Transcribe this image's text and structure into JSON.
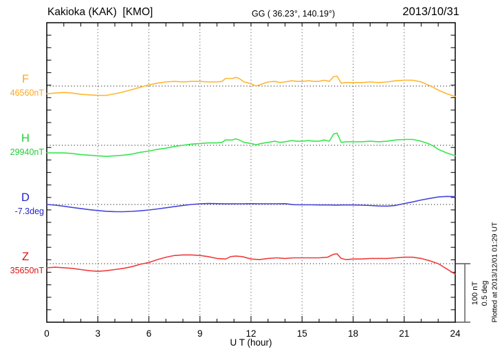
{
  "header": {
    "title": "Kakioka (KAK)  [KMO]",
    "coords": "GG ( 36.23°, 140.19°)",
    "date": "2013/10/31"
  },
  "axis": {
    "x_label": "U T (hour)",
    "x_ticks": [
      "0",
      "3",
      "6",
      "9",
      "12",
      "15",
      "18",
      "21",
      "24"
    ]
  },
  "scale_bar": {
    "line1": "100 nT",
    "line2": "0.5 deg"
  },
  "footer_note": "Plotted at 2013/12/01 01:29 UT",
  "chart_data": {
    "type": "line",
    "title": "Kakioka (KAK) [KMO] magnetogram 2013/10/31",
    "xlabel": "U T (hour)",
    "x_range": [
      0,
      24
    ],
    "x_tick_step_major": 3,
    "x_tick_step_minor": 1,
    "grid": "dotted vertical lines every 3 h; dotted horizontal baseline per channel",
    "scale": {
      "nT_per_division": 100,
      "deg_per_division": 0.5
    },
    "legend_position": "left margin, one colored label per channel",
    "series": [
      {
        "name": "F",
        "unit": "nT",
        "baseline": 46560,
        "baseline_label": "46560nT",
        "color": "#FFB52E",
        "label_color": "#FFA81E",
        "points": [
          [
            0,
            -13
          ],
          [
            0.5,
            -12
          ],
          [
            1,
            -11
          ],
          [
            1.5,
            -12
          ],
          [
            2,
            -14
          ],
          [
            2.5,
            -15
          ],
          [
            3,
            -16
          ],
          [
            3.5,
            -16
          ],
          [
            4,
            -13
          ],
          [
            4.5,
            -10
          ],
          [
            5,
            -6
          ],
          [
            5.5,
            -2
          ],
          [
            6,
            2
          ],
          [
            6.5,
            5
          ],
          [
            7,
            7
          ],
          [
            7.5,
            8
          ],
          [
            8,
            7
          ],
          [
            8.5,
            8
          ],
          [
            9,
            8
          ],
          [
            9.5,
            7
          ],
          [
            10,
            7
          ],
          [
            10.3,
            8
          ],
          [
            10.5,
            13
          ],
          [
            10.9,
            13
          ],
          [
            11.1,
            15
          ],
          [
            11.3,
            13
          ],
          [
            11.6,
            7
          ],
          [
            12,
            4
          ],
          [
            12.3,
            0
          ],
          [
            12.6,
            3
          ],
          [
            13,
            7
          ],
          [
            13.4,
            8
          ],
          [
            13.7,
            6
          ],
          [
            14,
            7
          ],
          [
            14.4,
            9
          ],
          [
            14.7,
            8
          ],
          [
            15,
            8
          ],
          [
            15.4,
            9
          ],
          [
            15.7,
            8
          ],
          [
            16,
            8
          ],
          [
            16.3,
            10
          ],
          [
            16.6,
            8
          ],
          [
            16.85,
            16
          ],
          [
            17.05,
            17
          ],
          [
            17.3,
            5
          ],
          [
            17.6,
            6
          ],
          [
            18,
            6
          ],
          [
            18.5,
            6
          ],
          [
            19,
            7
          ],
          [
            19.5,
            6
          ],
          [
            20,
            7
          ],
          [
            20.5,
            9
          ],
          [
            21,
            10
          ],
          [
            21.5,
            10
          ],
          [
            22,
            7
          ],
          [
            22.4,
            2
          ],
          [
            22.7,
            -2
          ],
          [
            23,
            -7
          ],
          [
            23.5,
            -13
          ],
          [
            24,
            -18
          ]
        ]
      },
      {
        "name": "H",
        "unit": "nT",
        "baseline": 29940,
        "baseline_label": "29940nT",
        "color": "#35E64B",
        "label_color": "#21CC38",
        "points": [
          [
            0,
            -13
          ],
          [
            0.5,
            -13
          ],
          [
            1,
            -13
          ],
          [
            1.5,
            -14
          ],
          [
            2,
            -16
          ],
          [
            2.5,
            -17
          ],
          [
            3,
            -18
          ],
          [
            3.5,
            -19
          ],
          [
            4,
            -18
          ],
          [
            4.5,
            -17
          ],
          [
            5,
            -15
          ],
          [
            5.5,
            -12
          ],
          [
            6,
            -10
          ],
          [
            6.5,
            -7
          ],
          [
            7,
            -5
          ],
          [
            7.5,
            -2
          ],
          [
            8,
            0
          ],
          [
            8.5,
            2
          ],
          [
            9,
            3
          ],
          [
            9.5,
            4
          ],
          [
            10,
            4
          ],
          [
            10.3,
            5
          ],
          [
            10.5,
            9
          ],
          [
            10.9,
            9
          ],
          [
            11.1,
            11
          ],
          [
            11.3,
            9
          ],
          [
            11.6,
            5
          ],
          [
            12,
            3
          ],
          [
            12.3,
            1
          ],
          [
            12.6,
            3
          ],
          [
            13,
            5
          ],
          [
            13.4,
            7
          ],
          [
            13.7,
            5
          ],
          [
            14,
            6
          ],
          [
            14.4,
            8
          ],
          [
            14.7,
            7
          ],
          [
            15,
            7
          ],
          [
            15.4,
            8
          ],
          [
            15.7,
            7
          ],
          [
            16,
            7
          ],
          [
            16.3,
            9
          ],
          [
            16.6,
            7
          ],
          [
            16.85,
            19
          ],
          [
            17.05,
            21
          ],
          [
            17.3,
            5
          ],
          [
            17.6,
            6
          ],
          [
            18,
            6
          ],
          [
            18.5,
            6
          ],
          [
            19,
            7
          ],
          [
            19.5,
            6
          ],
          [
            20,
            7
          ],
          [
            20.5,
            9
          ],
          [
            21,
            10
          ],
          [
            21.5,
            10
          ],
          [
            22,
            7
          ],
          [
            22.4,
            3
          ],
          [
            22.7,
            -1
          ],
          [
            23,
            -7
          ],
          [
            23.5,
            -13
          ],
          [
            24,
            -18
          ]
        ]
      },
      {
        "name": "D",
        "unit": "deg",
        "baseline": -7.3,
        "baseline_label": "-7.3deg",
        "color": "#4545DD",
        "label_color": "#2323CC",
        "points": [
          [
            0,
            0.0
          ],
          [
            0.5,
            -0.006
          ],
          [
            1,
            -0.015
          ],
          [
            1.5,
            -0.025
          ],
          [
            2,
            -0.035
          ],
          [
            2.5,
            -0.045
          ],
          [
            3,
            -0.052
          ],
          [
            3.5,
            -0.058
          ],
          [
            4,
            -0.061
          ],
          [
            4.5,
            -0.062
          ],
          [
            5,
            -0.059
          ],
          [
            5.5,
            -0.054
          ],
          [
            6,
            -0.047
          ],
          [
            6.5,
            -0.038
          ],
          [
            7,
            -0.028
          ],
          [
            7.5,
            -0.018
          ],
          [
            8,
            -0.008
          ],
          [
            8.5,
            0.0
          ],
          [
            9,
            0.005
          ],
          [
            9.5,
            0.008
          ],
          [
            10,
            0.007
          ],
          [
            10.5,
            0.005
          ],
          [
            11,
            0.005
          ],
          [
            11.5,
            0.006
          ],
          [
            12,
            0.007
          ],
          [
            12.5,
            0.006
          ],
          [
            13,
            0.006
          ],
          [
            13.5,
            0.006
          ],
          [
            14,
            0.007
          ],
          [
            14.5,
            -0.002
          ],
          [
            15,
            -0.003
          ],
          [
            15.5,
            -0.003
          ],
          [
            16,
            -0.004
          ],
          [
            16.5,
            -0.004
          ],
          [
            17,
            -0.005
          ],
          [
            17.5,
            -0.004
          ],
          [
            18,
            -0.004
          ],
          [
            18.5,
            -0.006
          ],
          [
            19,
            -0.009
          ],
          [
            19.5,
            -0.013
          ],
          [
            20,
            -0.014
          ],
          [
            20.5,
            -0.008
          ],
          [
            21,
            0.008
          ],
          [
            21.5,
            0.022
          ],
          [
            22,
            0.038
          ],
          [
            22.5,
            0.052
          ],
          [
            23,
            0.064
          ],
          [
            23.5,
            0.069
          ],
          [
            24,
            0.067
          ]
        ]
      },
      {
        "name": "Z",
        "unit": "nT",
        "baseline": 35650,
        "baseline_label": "35650nT",
        "color": "#EE3B3B",
        "label_color": "#DD1111",
        "points": [
          [
            0,
            -7
          ],
          [
            0.5,
            -6
          ],
          [
            1,
            -7
          ],
          [
            1.5,
            -8
          ],
          [
            2,
            -10
          ],
          [
            2.5,
            -12
          ],
          [
            3,
            -13
          ],
          [
            3.5,
            -12
          ],
          [
            4,
            -10
          ],
          [
            4.5,
            -8
          ],
          [
            5,
            -5
          ],
          [
            5.5,
            -1
          ],
          [
            6,
            2
          ],
          [
            6.5,
            7
          ],
          [
            7,
            11
          ],
          [
            7.5,
            14
          ],
          [
            8,
            15
          ],
          [
            8.5,
            15
          ],
          [
            9,
            14
          ],
          [
            9.5,
            12
          ],
          [
            10,
            9
          ],
          [
            10.5,
            8
          ],
          [
            10.8,
            12
          ],
          [
            11.1,
            13
          ],
          [
            11.5,
            12
          ],
          [
            12,
            8
          ],
          [
            12.5,
            7
          ],
          [
            13,
            9
          ],
          [
            13.5,
            10
          ],
          [
            14,
            9
          ],
          [
            14.5,
            10
          ],
          [
            15,
            10
          ],
          [
            15.5,
            10
          ],
          [
            16,
            10
          ],
          [
            16.5,
            11
          ],
          [
            16.85,
            16
          ],
          [
            17.05,
            17
          ],
          [
            17.3,
            9
          ],
          [
            17.6,
            7
          ],
          [
            18,
            8
          ],
          [
            18.5,
            8
          ],
          [
            19,
            9
          ],
          [
            19.5,
            9
          ],
          [
            20,
            9
          ],
          [
            20.5,
            10
          ],
          [
            21,
            11
          ],
          [
            21.5,
            11
          ],
          [
            22,
            9
          ],
          [
            22.5,
            5
          ],
          [
            23,
            0
          ],
          [
            23.5,
            -9
          ],
          [
            24,
            -18
          ]
        ]
      }
    ]
  }
}
